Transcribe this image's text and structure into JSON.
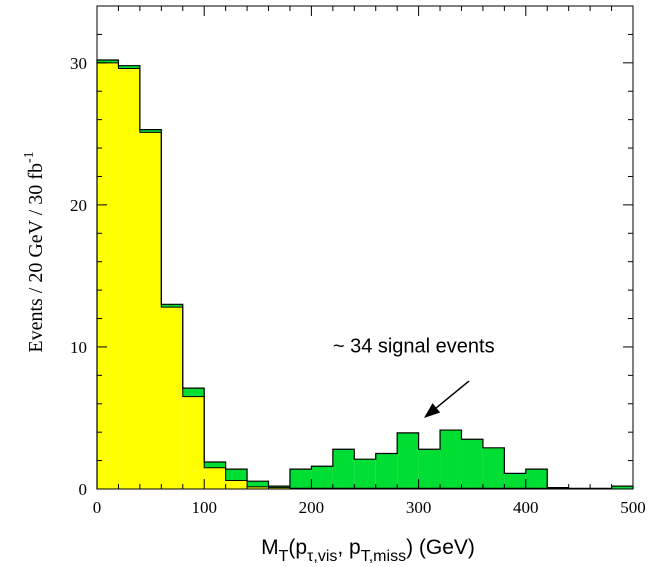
{
  "chart_data": {
    "type": "bar",
    "histogram": true,
    "stacked": true,
    "bin_width": 20,
    "x_bin_edges": [
      0,
      20,
      40,
      60,
      80,
      100,
      120,
      140,
      160,
      180,
      200,
      220,
      240,
      260,
      280,
      300,
      320,
      340,
      360,
      380,
      400,
      420,
      440,
      460,
      480,
      500
    ],
    "series": [
      {
        "color": "#ffff00",
        "values": [
          30.0,
          29.6,
          25.1,
          12.8,
          6.5,
          1.5,
          0.6,
          0.15,
          0.1,
          0.05,
          0.05,
          0.05,
          0.05,
          0.05,
          0.05,
          0.05,
          0.05,
          0.05,
          0.05,
          0.05,
          0.05,
          0.05,
          0.0,
          0.0,
          0.0
        ]
      },
      {
        "color": "#00dd33",
        "values": [
          0.2,
          0.2,
          0.2,
          0.2,
          0.6,
          0.4,
          0.8,
          0.4,
          0.1,
          1.35,
          1.55,
          2.75,
          2.05,
          2.45,
          3.9,
          2.75,
          4.1,
          3.45,
          2.85,
          1.05,
          1.35,
          0.05,
          0.05,
          0.05,
          0.2
        ]
      }
    ],
    "xlim": [
      0,
      500
    ],
    "ylim": [
      0,
      34
    ],
    "xticks": [
      0,
      100,
      200,
      300,
      400,
      500
    ],
    "yticks": [
      0,
      10,
      20,
      30
    ],
    "x_tick_labels": [
      "0",
      "100",
      "200",
      "300",
      "400",
      "500"
    ],
    "y_tick_labels": [
      "0",
      "10",
      "20",
      "30"
    ],
    "xlabel": {
      "main": "M",
      "sub_T": "T",
      "open": "(p",
      "sub_1": "τ,vis",
      "comma": ", p",
      "sub_2": "T,miss",
      "close": ") (GeV)"
    },
    "ylabel": {
      "main": "Events / 20 GeV /  30 fb",
      "sup": "-1"
    },
    "annotation": {
      "text": "~ 34 signal events",
      "arrow_from": [
        347,
        7.6
      ],
      "arrow_to": [
        305,
        5.0
      ],
      "text_anchor": [
        220,
        9.6
      ]
    },
    "grid": false,
    "legend": "none"
  }
}
